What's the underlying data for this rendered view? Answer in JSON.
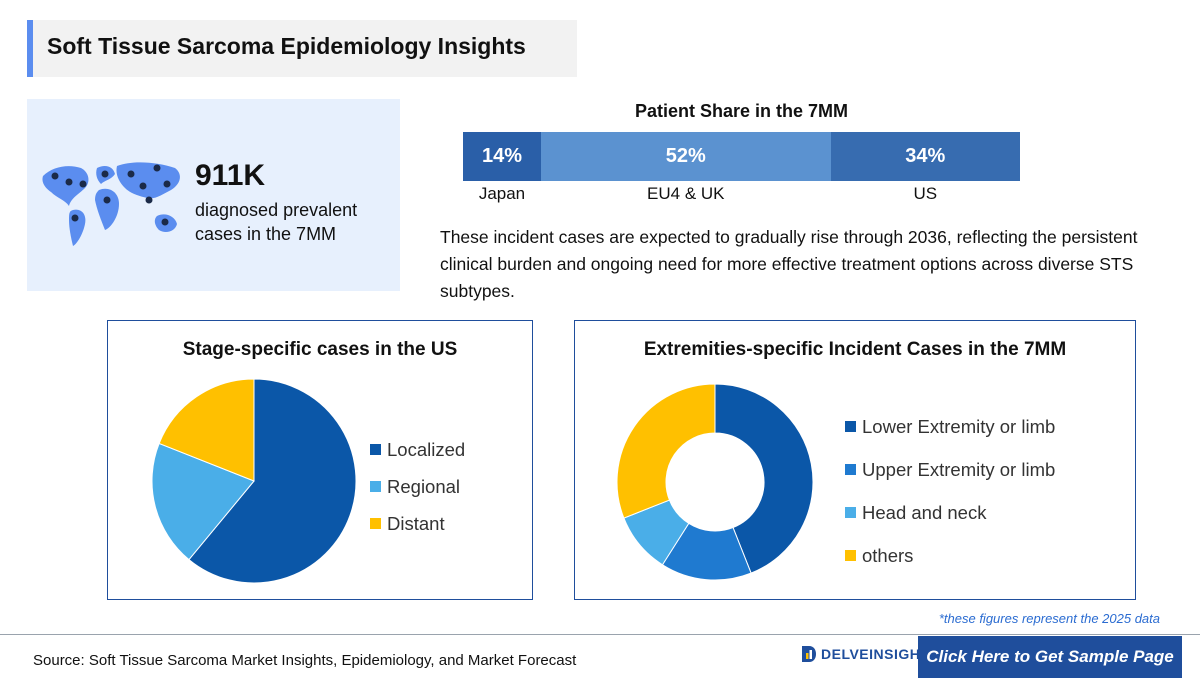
{
  "header": {
    "title": "Soft Tissue Sarcoma Epidemiology Insights"
  },
  "stat": {
    "value": "911K",
    "description": "diagnosed prevalent cases in the 7MM",
    "icon": "world-map-patients-icon"
  },
  "patient_share": {
    "title": "Patient Share in the 7MM",
    "segments": [
      {
        "label": "Japan",
        "value_label": "14%",
        "value": 14,
        "color": "#2a5fa8"
      },
      {
        "label": "EU4 & UK",
        "value_label": "52%",
        "value": 52,
        "color": "#5b92d0"
      },
      {
        "label": "US",
        "value_label": "34%",
        "value": 34,
        "color": "#376cb0"
      }
    ]
  },
  "paragraph": "These incident cases are expected to gradually rise through 2036, reflecting the persistent clinical burden and ongoing need for more effective treatment options across diverse STS subtypes.",
  "chart_data": [
    {
      "type": "pie",
      "title": "Stage-specific cases in the US",
      "categories": [
        "Localized",
        "Regional",
        "Distant"
      ],
      "values": [
        61,
        20,
        19
      ],
      "colors": [
        "#0b57a8",
        "#4aaee8",
        "#ffc000"
      ],
      "legend": "right"
    },
    {
      "type": "pie",
      "donut": true,
      "title": "Extremities-specific Incident Cases in the 7MM",
      "categories": [
        "Lower Extremity or limb",
        "Upper Extremity or limb",
        "Head and neck",
        "others"
      ],
      "values": [
        44,
        15,
        10,
        31
      ],
      "colors": [
        "#0b57a8",
        "#1f7ad0",
        "#4aaee8",
        "#ffc000"
      ],
      "legend": "right"
    }
  ],
  "footnote": "*these figures represent the 2025 data",
  "footer": {
    "source": "Source: Soft Tissue Sarcoma Market Insights, Epidemiology, and Market Forecast",
    "logo_text": "DELVEINSIGHT",
    "cta_label": "Click Here to Get Sample Page"
  }
}
